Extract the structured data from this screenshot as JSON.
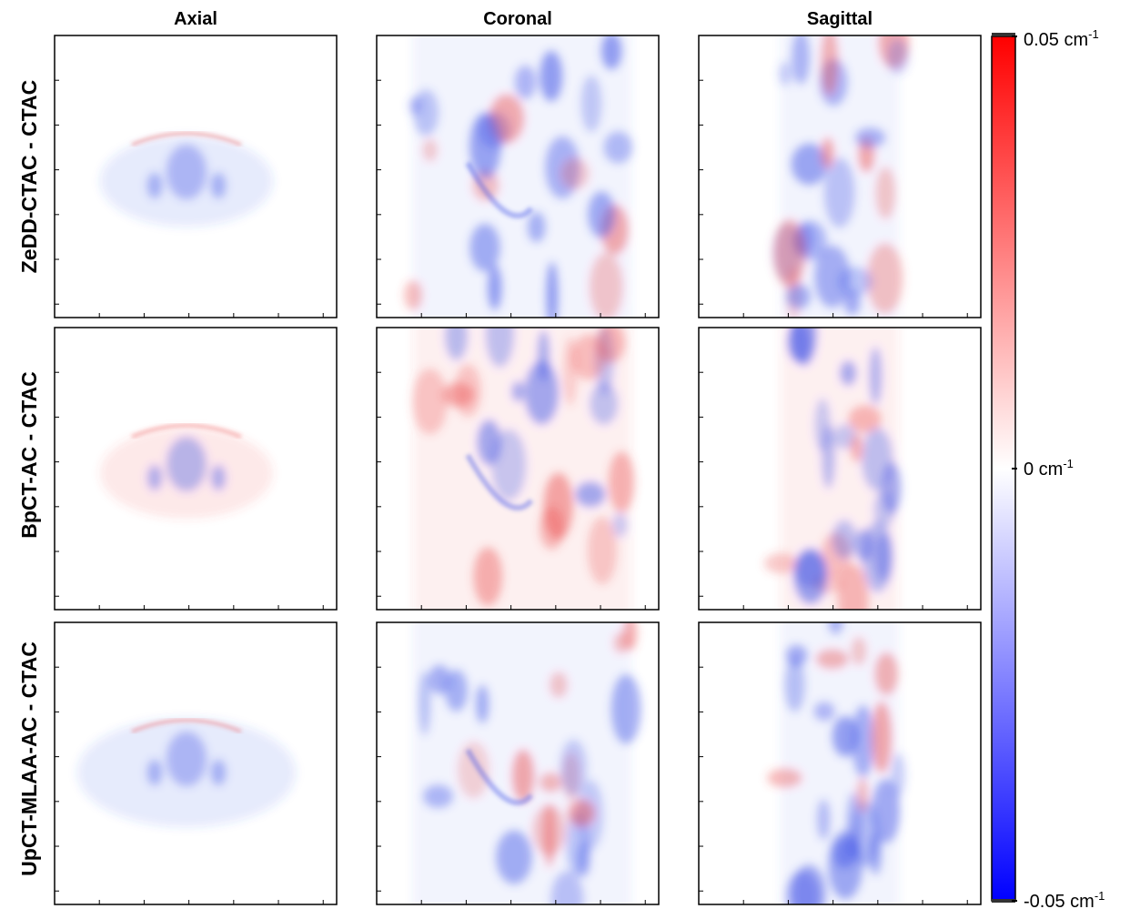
{
  "columns": [
    "Axial",
    "Coronal",
    "Sagittal"
  ],
  "rows": [
    "ZeDD-CTAC - CTAC",
    "BpCT-AC - CTAC",
    "UpCT-MLAA-AC - CTAC"
  ],
  "colorbar": {
    "range": [
      -0.05,
      0.05
    ],
    "ticks": [
      {
        "value": 0.05,
        "label": "0.05 cm",
        "exponent": "-1"
      },
      {
        "value": 0,
        "label": "0 cm",
        "exponent": "-1"
      },
      {
        "value": -0.05,
        "label": "-0.05 cm",
        "exponent": "-1"
      }
    ]
  }
}
